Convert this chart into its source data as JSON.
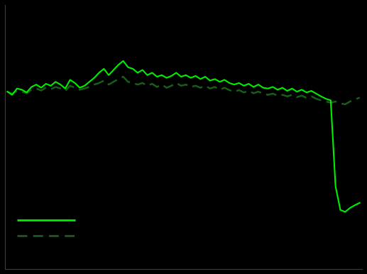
{
  "background_color": "#000000",
  "axes_color": "#000000",
  "spine_color": "#2a4a2a",
  "regional_banks_color": "#00ee00",
  "sp500_color": "#1a5c1a",
  "ylim_min": 0.55,
  "ylim_max": 1.22,
  "regional_banks": [
    1.0,
    0.992,
    1.008,
    1.005,
    0.998,
    1.012,
    1.018,
    1.01,
    1.02,
    1.015,
    1.025,
    1.018,
    1.008,
    1.03,
    1.022,
    1.01,
    1.015,
    1.025,
    1.035,
    1.048,
    1.058,
    1.042,
    1.055,
    1.068,
    1.078,
    1.062,
    1.058,
    1.048,
    1.055,
    1.042,
    1.048,
    1.038,
    1.042,
    1.035,
    1.04,
    1.048,
    1.038,
    1.042,
    1.035,
    1.04,
    1.032,
    1.038,
    1.028,
    1.032,
    1.025,
    1.03,
    1.022,
    1.018,
    1.022,
    1.015,
    1.02,
    1.012,
    1.018,
    1.01,
    1.008,
    1.012,
    1.005,
    1.01,
    1.002,
    1.008,
    1.0,
    1.005,
    0.998,
    1.002,
    0.995,
    0.988,
    0.982,
    0.978,
    0.76,
    0.7,
    0.695,
    0.705,
    0.712,
    0.718
  ],
  "sp500": [
    1.0,
    0.995,
    1.002,
    1.0,
    0.996,
    1.005,
    1.008,
    1.003,
    1.01,
    1.006,
    1.012,
    1.008,
    1.002,
    1.015,
    1.01,
    1.005,
    1.008,
    1.012,
    1.018,
    1.022,
    1.028,
    1.018,
    1.025,
    1.032,
    1.038,
    1.025,
    1.022,
    1.018,
    1.022,
    1.015,
    1.02,
    1.012,
    1.018,
    1.01,
    1.015,
    1.022,
    1.015,
    1.018,
    1.012,
    1.015,
    1.01,
    1.015,
    1.008,
    1.012,
    1.005,
    1.01,
    1.004,
    1.0,
    1.004,
    0.998,
    1.002,
    0.996,
    1.0,
    0.995,
    0.992,
    0.995,
    0.99,
    0.992,
    0.988,
    0.992,
    0.986,
    0.99,
    0.984,
    0.988,
    0.982,
    0.978,
    0.975,
    0.972,
    0.975,
    0.97,
    0.968,
    0.975,
    0.98,
    0.985
  ]
}
